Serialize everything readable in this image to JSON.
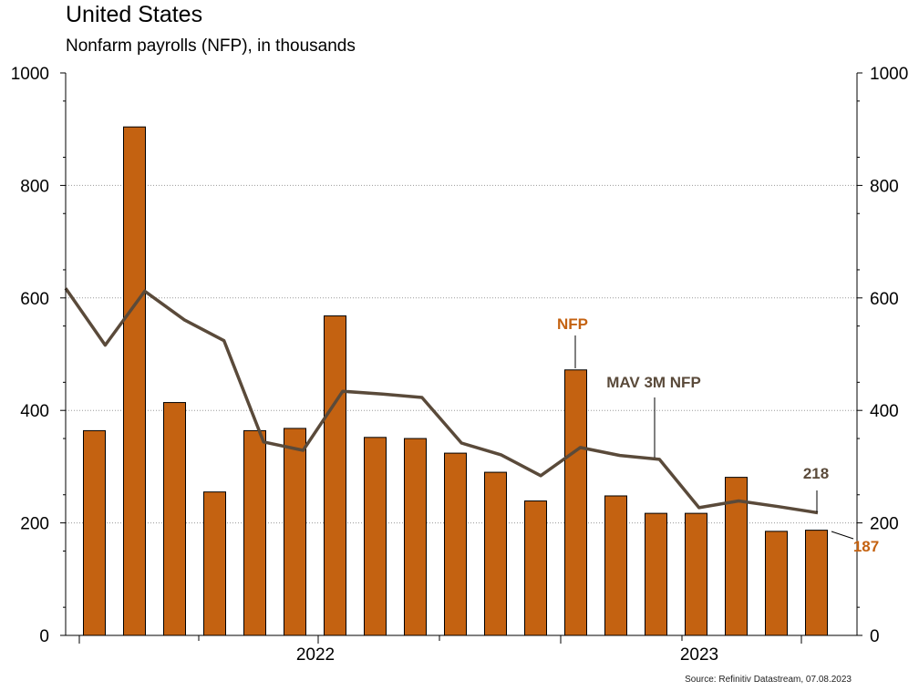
{
  "title": "United States",
  "subtitle": "Nonfarm payrolls (NFP), in thousands",
  "source": "Source: Refinitiv Datastream, 07.08.2023",
  "colors": {
    "bar": "#C46211",
    "bar_border": "#000000",
    "line": "#5A4A3A",
    "nfp_label": "#C46211",
    "mav_label": "#5A4A3A",
    "grid": "#9a9a9a"
  },
  "annotations": {
    "nfp_label": "NFP",
    "mav_label": "MAV 3M NFP",
    "last_line_value": "218",
    "last_bar_value": "187"
  },
  "chart_data": {
    "type": "bar",
    "title": "United States",
    "subtitle": "Nonfarm payrolls (NFP), in thousands",
    "ylim": [
      0,
      1000
    ],
    "y_ticks": [
      0,
      200,
      400,
      600,
      800,
      1000
    ],
    "y_tick_labels": [
      "0",
      "200",
      "400",
      "600",
      "800",
      "1000"
    ],
    "x_tick_labels": [
      "2022",
      "2023"
    ],
    "grid": true,
    "series": [
      {
        "name": "NFP",
        "type": "bar",
        "values": [
          364,
          904,
          414,
          255,
          364,
          368,
          568,
          352,
          350,
          324,
          290,
          239,
          472,
          248,
          217,
          217,
          281,
          185,
          187
        ]
      },
      {
        "name": "MAV 3M NFP",
        "type": "line",
        "values": [
          617,
          516,
          612,
          561,
          524,
          344,
          329,
          434,
          429,
          423,
          342,
          321,
          284,
          334,
          320,
          313,
          227,
          239,
          229,
          218
        ]
      }
    ]
  }
}
